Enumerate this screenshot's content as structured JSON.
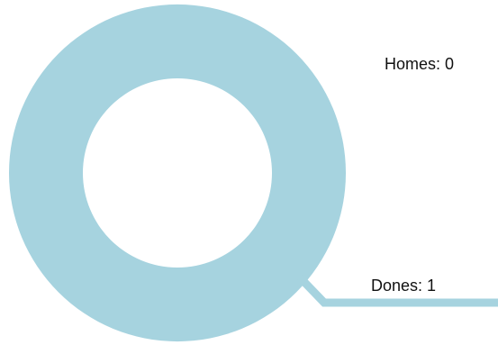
{
  "chart_data": {
    "type": "pie",
    "style": "donut",
    "categories": [
      "Homes",
      "Dones"
    ],
    "values": [
      0,
      1
    ],
    "labels": [
      "Homes: 0",
      "Dones: 1"
    ],
    "colors": {
      "Homes": "#a6d3df",
      "Dones": "#a6d3df"
    },
    "title": "",
    "legend": "none",
    "grid": false
  }
}
